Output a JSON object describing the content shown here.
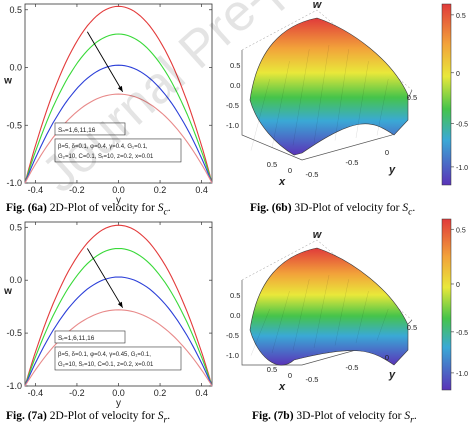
{
  "watermark": "Journal Pre-proof",
  "fig6a": {
    "caption_bold": "Fig. (6a)",
    "caption_text": "2D-Plot of velocity for",
    "caption_sym": "S",
    "caption_sub": "c",
    "legend_line1": "Sₙ=1,6,11,16",
    "legend_line2": "β=5, δ=0.1, φ=0.4, γ=0.4, G₁=0.1,",
    "legend_line3": "G₂=10, C=0.1, Sᵣ=10, z=0.2, x=0.01"
  },
  "fig6b": {
    "caption_bold": "Fig. (6b)",
    "caption_text": "3D-Plot of velocity for",
    "caption_sym": "S",
    "caption_sub": "c",
    "colorbar_ticks": [
      "0.5",
      "0",
      "-0.5",
      "-1.0"
    ]
  },
  "fig7a": {
    "caption_bold": "Fig. (7a)",
    "caption_text": "2D-Plot of velocity for",
    "caption_sym": "S",
    "caption_sub": "r",
    "legend_line1": "Sᵣ=1,6,11,16",
    "legend_line2": "β=5, δ=0.1, φ=0.4, γ=0.45, G₁=0.1,",
    "legend_line3": "G₂=10, Sᵣ=10, C=0.1, z=0.2, x=0.01"
  },
  "fig7b": {
    "caption_bold": "Fig. (7b)",
    "caption_text": "3D-Plot of velocity for",
    "caption_sym": "S",
    "caption_sub": "r",
    "colorbar_ticks": [
      "0.5",
      "0",
      "-0.5",
      "-1.0"
    ]
  },
  "labels_3d": {
    "w": "w",
    "x": "x",
    "y": "y",
    "yticks": [
      "0.5",
      "0",
      "-0.5"
    ],
    "xticks": [
      "0.5",
      "0",
      "-0.5"
    ],
    "wticks": [
      "0.5",
      "0.0",
      "-0.5",
      "-1.0"
    ]
  },
  "chart_data": [
    {
      "type": "line",
      "xlabel": "y",
      "ylabel": "w",
      "xlim": [
        -0.45,
        0.45
      ],
      "ylim": [
        -1.0,
        0.55
      ],
      "xticks": [
        "-0.4",
        "-0.2",
        "0.0",
        "0.2",
        "0.4"
      ],
      "yticks": [
        "0.5",
        "0.0",
        "-0.5",
        "-1.0"
      ],
      "series": [
        {
          "color": "#e33b3b",
          "peak": 0.53
        },
        {
          "color": "#39d939",
          "peak": 0.29
        },
        {
          "color": "#2b3fd8",
          "peak": 0.02
        },
        {
          "color": "#e88a8a",
          "peak": -0.23
        }
      ]
    },
    {
      "type": "line",
      "xlabel": "y",
      "ylabel": "w",
      "xlim": [
        -0.45,
        0.45
      ],
      "ylim": [
        -1.0,
        0.55
      ],
      "xticks": [
        "-0.4",
        "-0.2",
        "0.0",
        "0.2",
        "0.4"
      ],
      "yticks": [
        "0.5",
        "0.0",
        "-0.5",
        "-1.0"
      ],
      "series": [
        {
          "color": "#e33b3b",
          "peak": 0.52
        },
        {
          "color": "#39d939",
          "peak": 0.3
        },
        {
          "color": "#2b3fd8",
          "peak": 0.03
        },
        {
          "color": "#e88a8a",
          "peak": -0.28
        }
      ]
    }
  ]
}
